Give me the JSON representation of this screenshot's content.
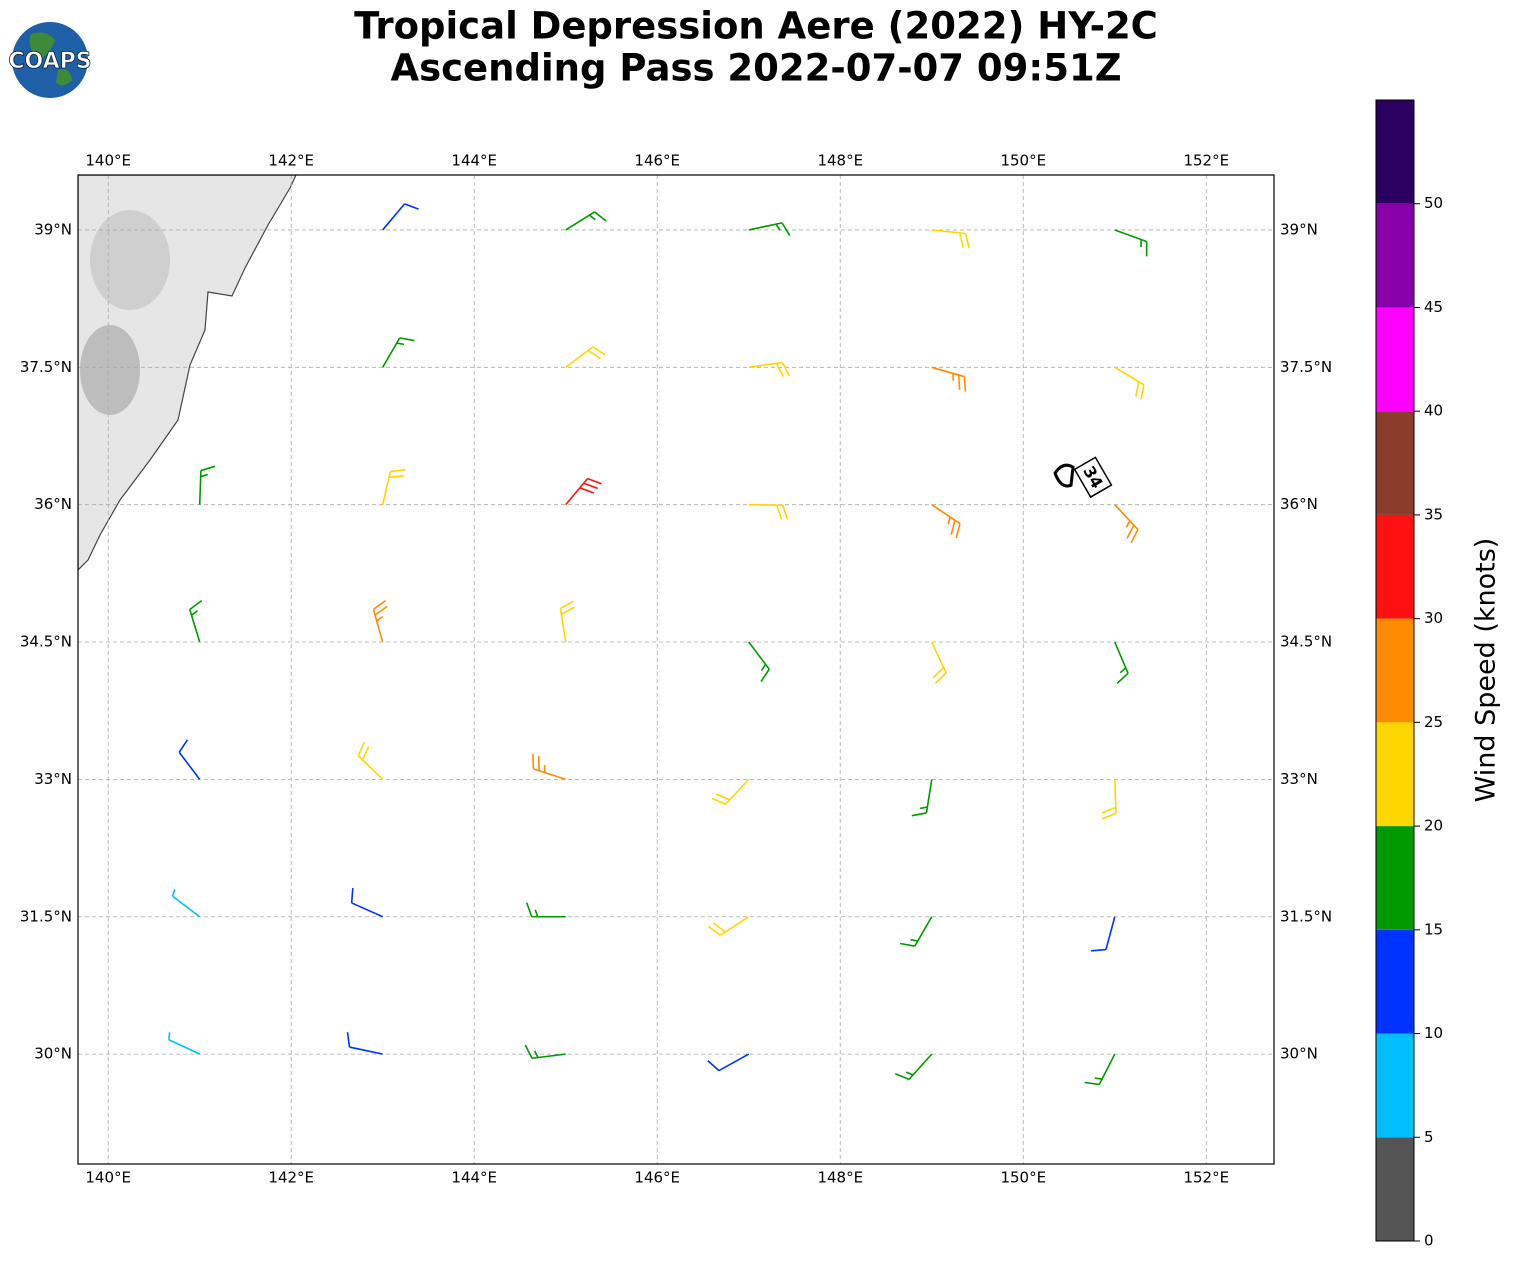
{
  "title": "Tropical Depression Aere (2022) HY-2C",
  "subtitle": "Ascending Pass 2022-07-07 09:51Z",
  "logo": "COAPS",
  "map": {
    "xlim": [
      139.67,
      152.74
    ],
    "ylim": [
      28.8,
      39.6
    ],
    "xticks": [
      {
        "value": 140,
        "label": "140°E"
      },
      {
        "value": 142,
        "label": "142°E"
      },
      {
        "value": 144,
        "label": "144°E"
      },
      {
        "value": 146,
        "label": "146°E"
      },
      {
        "value": 148,
        "label": "148°E"
      },
      {
        "value": 150,
        "label": "150°E"
      },
      {
        "value": 152,
        "label": "152°E"
      }
    ],
    "yticks": [
      {
        "value": 30,
        "label": "30°N"
      },
      {
        "value": 31.5,
        "label": "31.5°N"
      },
      {
        "value": 33,
        "label": "33°N"
      },
      {
        "value": 34.5,
        "label": "34.5°N"
      },
      {
        "value": 36,
        "label": "36°N"
      },
      {
        "value": 37.5,
        "label": "37.5°N"
      },
      {
        "value": 39,
        "label": "39°N"
      }
    ],
    "grid": true,
    "storm_marker": {
      "label": "34",
      "lon": 150.5,
      "lat": 36.3
    },
    "winds": {
      "lon": [
        143,
        145,
        147,
        149,
        151,
        143,
        145,
        147,
        149,
        151,
        141,
        143,
        145,
        147,
        149,
        151,
        141,
        143,
        145,
        147,
        149,
        151,
        141,
        143,
        145,
        147,
        149,
        151,
        141,
        143,
        145,
        147,
        149,
        151,
        141,
        143,
        145,
        147,
        149,
        151
      ],
      "lat": [
        39,
        39,
        39,
        39,
        39,
        37.5,
        37.5,
        37.5,
        37.5,
        37.5,
        36,
        36,
        36,
        36,
        36,
        36,
        34.5,
        34.5,
        34.5,
        34.5,
        34.5,
        34.5,
        33,
        33,
        33,
        33,
        33,
        33,
        31.5,
        31.5,
        31.5,
        31.5,
        31.5,
        31.5,
        30,
        30,
        30,
        30,
        30,
        30
      ],
      "speed": [
        12,
        17,
        18,
        22,
        17,
        17,
        23,
        22,
        26,
        22,
        18,
        22,
        31,
        22,
        27,
        28,
        17,
        26,
        23,
        18,
        22,
        18,
        12,
        21,
        26,
        23,
        18,
        21,
        8,
        13,
        18,
        21,
        17,
        13,
        8,
        12,
        16,
        13,
        17,
        16
      ],
      "direction": [
        40,
        58,
        78,
        96,
        110,
        30,
        53,
        82,
        106,
        121,
        2,
        13,
        40,
        91,
        124,
        137,
        343,
        344,
        351,
        143,
        155,
        157,
        323,
        314,
        288,
        223,
        189,
        178,
        307,
        294,
        270,
        237,
        210,
        195,
        295,
        282,
        263,
        241,
        222,
        207
      ]
    }
  },
  "colorbar": {
    "label": "Wind Speed (knots)",
    "ylim": [
      0,
      55
    ],
    "bounds": [
      0,
      5,
      10,
      15,
      20,
      25,
      30,
      35,
      40,
      45,
      50,
      55
    ],
    "colors": [
      "#555555",
      "#00bfff",
      "#0033ff",
      "#009900",
      "#ffd700",
      "#ff8c00",
      "#ff1010",
      "#8a3b2a",
      "#ff00ff",
      "#8800aa",
      "#2a0060"
    ],
    "yticks": [
      0,
      5,
      10,
      15,
      20,
      25,
      30,
      35,
      40,
      45,
      50
    ]
  }
}
